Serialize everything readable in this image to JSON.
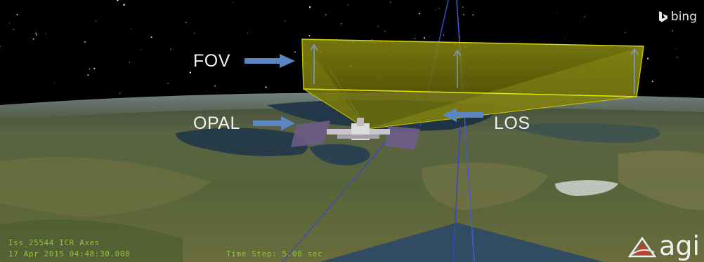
{
  "annotations": {
    "fov_label": "FOV",
    "opal_label": "OPAL",
    "los_label": "LOS"
  },
  "branding": {
    "bing_text": "bing",
    "agi_text": "agi"
  },
  "status": {
    "line1": "Iss_25544 ICR Axes",
    "line2": "17 Apr 2015 04:48:30.000",
    "time_step": "Time Step: 5.00 sec"
  },
  "colors": {
    "fov_fill": "#8a8a00",
    "fov_edge": "#d6d600",
    "arrow": "#5b86c2",
    "hud_text": "#8ec63f",
    "vector_line": "#3a46c8"
  },
  "icons": {
    "bing_logo": "bing-logo-icon",
    "agi_logo": "agi-logo-icon"
  }
}
